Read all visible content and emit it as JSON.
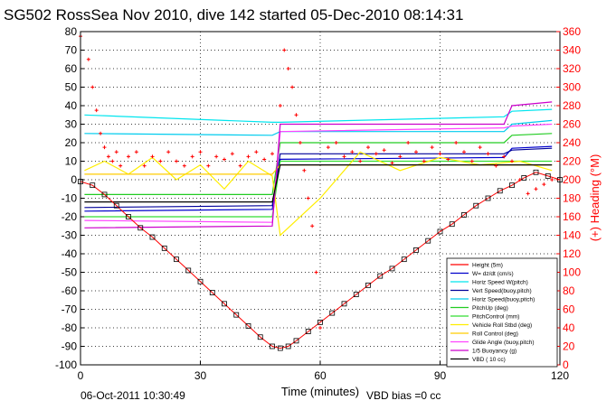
{
  "chart_data": {
    "type": "line",
    "title": "SG502 RossSea Nov 2010, dive 142 started 05-Dec-2010 08:14:31",
    "xlabel": "Time (minutes)",
    "ylabel_right": "(+) Heading (°M)",
    "xlim": [
      0,
      120
    ],
    "ylim_left": [
      -100,
      80
    ],
    "ylim_right": [
      0,
      360
    ],
    "x_ticks": [
      0,
      30,
      60,
      90,
      120
    ],
    "y_ticks_left": [
      80,
      70,
      60,
      50,
      40,
      30,
      20,
      10,
      0,
      -10,
      -20,
      -30,
      -40,
      -50,
      -60,
      -70,
      -80,
      -90,
      -100
    ],
    "y_ticks_right": [
      360,
      340,
      320,
      300,
      280,
      260,
      240,
      220,
      200,
      180,
      160,
      140,
      120,
      100,
      80,
      60,
      40,
      20,
      0
    ],
    "grid": true,
    "legend_position": "bottom-right",
    "footer_date": "06-Oct-2011 10:30:49",
    "footer_note": "VBD bias =0 cc",
    "series": [
      {
        "name": "Height (5m)",
        "color": "#ff0000",
        "x": [
          0,
          3,
          6,
          9,
          12,
          15,
          18,
          21,
          24,
          27,
          30,
          33,
          36,
          39,
          42,
          45,
          48,
          50,
          52,
          54,
          57,
          60,
          63,
          66,
          69,
          72,
          75,
          78,
          81,
          84,
          87,
          90,
          93,
          96,
          99,
          102,
          105,
          108,
          111,
          114,
          117,
          120
        ],
        "y": [
          -1,
          -3,
          -8,
          -14,
          -20,
          -26,
          -31,
          -37,
          -43,
          -49,
          -55,
          -61,
          -67,
          -73,
          -79,
          -85,
          -90,
          -91,
          -90,
          -87,
          -82,
          -77,
          -72,
          -67,
          -62,
          -57,
          -52,
          -48,
          -43,
          -38,
          -33,
          -28,
          -24,
          -19,
          -14,
          -10,
          -6,
          -3,
          1,
          4,
          2,
          0
        ]
      },
      {
        "name": "W= dz/dt (cm/s)",
        "color": "#0000cc",
        "x": [
          1,
          48,
          50,
          106,
          108,
          118
        ],
        "y": [
          -17,
          -16,
          11,
          12,
          17,
          18
        ]
      },
      {
        "name": "Horiz Speed W(pitch)",
        "color": "#00e5ee",
        "x": [
          1,
          48,
          50,
          106,
          108,
          118
        ],
        "y": [
          35,
          31,
          31,
          34,
          37,
          38
        ]
      },
      {
        "name": "Vert Speed(buoy,pitch)",
        "color": "#000099",
        "x": [
          1,
          48,
          50,
          106,
          108,
          118
        ],
        "y": [
          -15,
          -14,
          14,
          14,
          16,
          17
        ]
      },
      {
        "name": "Horiz Speed(buoy,pitch)",
        "color": "#00ccee",
        "x": [
          1,
          48,
          50,
          106,
          108,
          118
        ],
        "y": [
          25,
          24,
          26,
          26,
          30,
          32
        ]
      },
      {
        "name": "PitchUp (deg)",
        "color": "#22cc22",
        "x": [
          1,
          48,
          50,
          106,
          108,
          118
        ],
        "y": [
          -8,
          -8,
          20,
          20,
          24,
          25
        ]
      },
      {
        "name": "PitchControl (mm)",
        "color": "#33dd33",
        "x": [
          1,
          48,
          50,
          118
        ],
        "y": [
          -20,
          -20,
          10,
          10
        ]
      },
      {
        "name": "Vehicle Roll Stbd (deg)",
        "color": "#ffee00",
        "x": [
          1,
          6,
          12,
          18,
          24,
          30,
          36,
          42,
          48,
          50,
          60,
          70,
          80,
          90,
          100,
          110,
          118
        ],
        "y": [
          5,
          10,
          3,
          12,
          0,
          8,
          -5,
          10,
          2,
          -30,
          -10,
          15,
          5,
          12,
          8,
          10,
          5
        ]
      },
      {
        "name": "Roll Control (deg)",
        "color": "#ffcc00",
        "x": [
          1,
          48,
          50,
          118
        ],
        "y": [
          3,
          3,
          8,
          8
        ]
      },
      {
        "name": "Glide Angle (buoy,pitch)",
        "color": "#ff44ff",
        "x": [
          1,
          48,
          50,
          106,
          108,
          118
        ],
        "y": [
          -22,
          -23,
          26,
          28,
          29,
          30
        ]
      },
      {
        "name": "1/5 Buoyancy (g)",
        "color": "#cc00cc",
        "x": [
          1,
          48,
          50,
          106,
          108,
          118
        ],
        "y": [
          -26,
          -25,
          30,
          30,
          40,
          42
        ]
      },
      {
        "name": "VBD ( 10 cc)",
        "color": "#000000",
        "x": [
          1,
          48,
          50,
          118
        ],
        "y": [
          -12,
          -12,
          8,
          8
        ]
      }
    ],
    "heading": {
      "name": "(+) Heading (°M)",
      "color": "#ff0000",
      "x": [
        0,
        2,
        3,
        4,
        5,
        6,
        7,
        8,
        9,
        10,
        12,
        14,
        16,
        18,
        20,
        22,
        24,
        26,
        28,
        30,
        32,
        34,
        36,
        38,
        40,
        42,
        44,
        46,
        48,
        50,
        51,
        52,
        53,
        54,
        55,
        56,
        57,
        58,
        59,
        60,
        62,
        64,
        66,
        68,
        70,
        72,
        74,
        76,
        78,
        80,
        82,
        84,
        86,
        88,
        90,
        92,
        94,
        96,
        98,
        100,
        102,
        104,
        106,
        108,
        110,
        112,
        114,
        116,
        118
      ],
      "y": [
        355,
        330,
        300,
        275,
        250,
        235,
        225,
        220,
        230,
        215,
        225,
        230,
        215,
        225,
        220,
        230,
        220,
        215,
        225,
        230,
        215,
        225,
        222,
        228,
        215,
        225,
        230,
        222,
        228,
        280,
        340,
        320,
        300,
        270,
        240,
        210,
        180,
        150,
        100,
        40,
        235,
        240,
        225,
        230,
        220,
        235,
        228,
        232,
        218,
        225,
        240,
        230,
        220,
        235,
        228,
        222,
        240,
        230,
        220,
        235,
        228,
        215,
        225,
        220,
        200,
        185,
        190,
        195,
        200
      ]
    }
  }
}
